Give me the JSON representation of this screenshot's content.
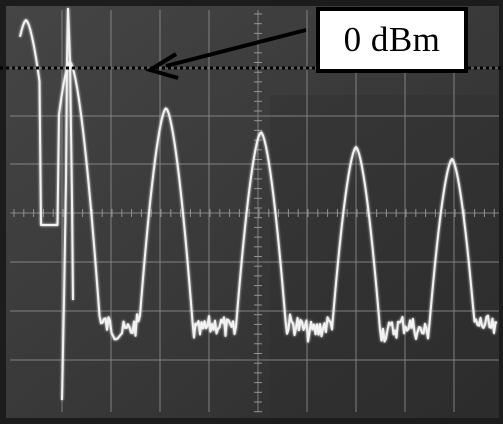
{
  "annotation": {
    "label": "0 dBm"
  },
  "colors": {
    "screen_background": "#3a3a3a",
    "graticule": "#9a9a9a",
    "trace": "#f2f2f2",
    "reference_line": "#000000",
    "arrow": "#000000"
  },
  "icons": {
    "arrow": "arrow-left-icon"
  }
}
